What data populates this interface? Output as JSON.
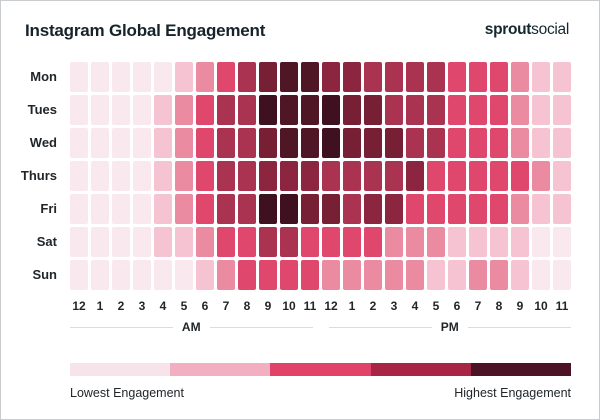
{
  "header": {
    "title": "Instagram Global Engagement",
    "logo_bold": "sprout",
    "logo_light": "social"
  },
  "chart_data": {
    "type": "heatmap",
    "title": "Instagram Global Engagement",
    "rows": [
      "Mon",
      "Tues",
      "Wed",
      "Thurs",
      "Fri",
      "Sat",
      "Sun"
    ],
    "columns": [
      "12",
      "1",
      "2",
      "3",
      "4",
      "5",
      "6",
      "7",
      "8",
      "9",
      "10",
      "11",
      "12",
      "1",
      "2",
      "3",
      "4",
      "5",
      "6",
      "7",
      "8",
      "9",
      "10",
      "11"
    ],
    "column_periods": [
      "AM",
      "PM"
    ],
    "values_scale": "engagement level, 1 = lowest, 9 = highest",
    "values": [
      [
        1,
        1,
        1,
        1,
        1,
        2,
        3,
        4,
        5,
        7,
        8,
        8,
        6,
        6,
        5,
        5,
        5,
        5,
        4,
        4,
        4,
        3,
        2,
        2
      ],
      [
        1,
        1,
        1,
        1,
        2,
        3,
        4,
        5,
        5,
        9,
        8,
        8,
        9,
        7,
        7,
        5,
        5,
        5,
        4,
        4,
        4,
        3,
        2,
        2
      ],
      [
        1,
        1,
        1,
        1,
        2,
        3,
        4,
        5,
        5,
        7,
        8,
        8,
        9,
        7,
        7,
        7,
        5,
        5,
        4,
        4,
        4,
        3,
        2,
        2
      ],
      [
        1,
        1,
        1,
        1,
        2,
        3,
        4,
        5,
        5,
        6,
        6,
        6,
        5,
        5,
        5,
        5,
        6,
        4,
        4,
        4,
        4,
        4,
        3,
        2
      ],
      [
        1,
        1,
        1,
        1,
        2,
        3,
        4,
        5,
        5,
        9,
        9,
        7,
        7,
        5,
        6,
        6,
        4,
        4,
        4,
        4,
        4,
        3,
        2,
        2
      ],
      [
        1,
        1,
        1,
        1,
        2,
        2,
        3,
        4,
        4,
        5,
        5,
        4,
        4,
        4,
        4,
        3,
        3,
        3,
        2,
        2,
        2,
        2,
        1,
        1
      ],
      [
        1,
        1,
        1,
        1,
        1,
        1,
        2,
        3,
        4,
        4,
        4,
        4,
        3,
        3,
        3,
        3,
        3,
        2,
        2,
        3,
        3,
        2,
        1,
        1
      ]
    ],
    "palette": {
      "1": "#f9e9ee",
      "2": "#f5c3d1",
      "3": "#ea8ba2",
      "4": "#e0476d",
      "5": "#a93351",
      "6": "#8c2540",
      "7": "#771f35",
      "8": "#4f1626",
      "9": "#3f1120"
    },
    "legend": {
      "low_label": "Lowest Engagement",
      "high_label": "Highest Engagement",
      "colors": [
        "#f7e4ea",
        "#f2afc1",
        "#e04367",
        "#a92545",
        "#4c1326"
      ]
    }
  }
}
